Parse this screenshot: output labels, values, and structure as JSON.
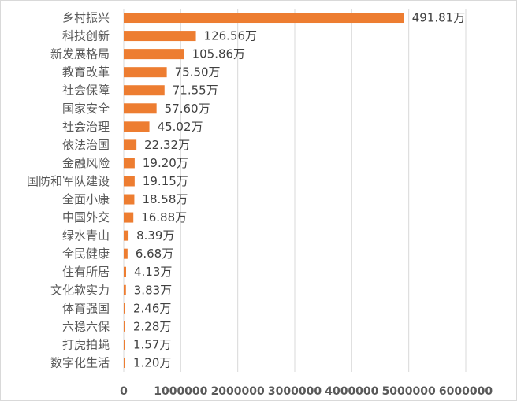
{
  "chart_data": {
    "type": "bar",
    "orientation": "horizontal",
    "categories": [
      "乡村振兴",
      "科技创新",
      "新发展格局",
      "教育改革",
      "社会保障",
      "国家安全",
      "社会治理",
      "依法治国",
      "金融风险",
      "国防和军队建设",
      "全面小康",
      "中国外交",
      "绿水青山",
      "全民健康",
      "住有所居",
      "文化软实力",
      "体育强国",
      "六稳六保",
      "打虎拍蝇",
      "数字化生活"
    ],
    "values": [
      4918100,
      1265600,
      1058600,
      755000,
      715500,
      576000,
      450200,
      223200,
      192000,
      191500,
      185800,
      168800,
      83900,
      66800,
      41300,
      38300,
      24600,
      22800,
      15700,
      12000
    ],
    "data_labels": [
      "491.81万",
      "126.56万",
      "105.86万",
      "75.50万",
      "71.55万",
      "57.60万",
      "45.02万",
      "22.32万",
      "19.20万",
      "19.15万",
      "18.58万",
      "16.88万",
      "8.39万",
      "6.68万",
      "4.13万",
      "3.83万",
      "2.46万",
      "2.28万",
      "1.57万",
      "1.20万"
    ],
    "xticks": [
      "0",
      "1000000",
      "2000000",
      "3000000",
      "4000000",
      "5000000",
      "6000000"
    ],
    "xlim": [
      0,
      6000000
    ],
    "bar_color": "#ed7d31",
    "title": "",
    "xlabel": "",
    "ylabel": "",
    "grid": "vertical"
  }
}
